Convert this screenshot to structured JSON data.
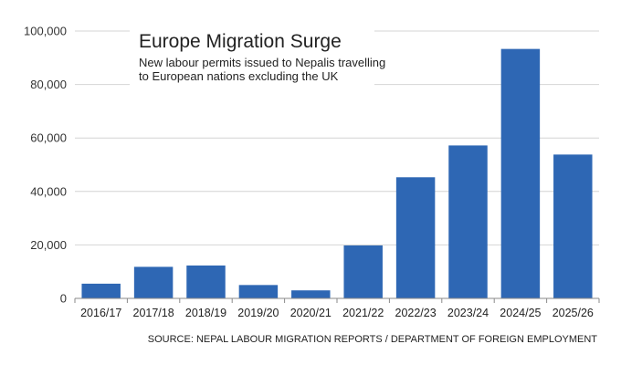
{
  "chart_data": {
    "type": "bar",
    "title": "Europe Migration Surge",
    "subtitle_lines": [
      "New labour permits issued to Nepalis travelling",
      "to European nations excluding the UK"
    ],
    "source": "SOURCE: NEPAL LABOUR MIGRATION REPORTS / DEPARTMENT OF FOREIGN EMPLOYMENT",
    "categories": [
      "2016/17",
      "2017/18",
      "2018/19",
      "2019/20",
      "2020/21",
      "2021/22",
      "2022/23",
      "2023/24",
      "2024/25",
      "2025/26"
    ],
    "values": [
      5500,
      11800,
      12300,
      5000,
      3000,
      19800,
      45300,
      57200,
      93300,
      53800
    ],
    "y_ticks": [
      0,
      20000,
      40000,
      60000,
      80000,
      100000
    ],
    "y_tick_labels": [
      "0",
      "20,000",
      "40,000",
      "60,000",
      "80,000",
      "100,000"
    ],
    "ylim": [
      0,
      100000
    ],
    "xlabel": "",
    "ylabel": "",
    "grid": true,
    "legend": "none",
    "bar_color": "#2e67b4"
  }
}
